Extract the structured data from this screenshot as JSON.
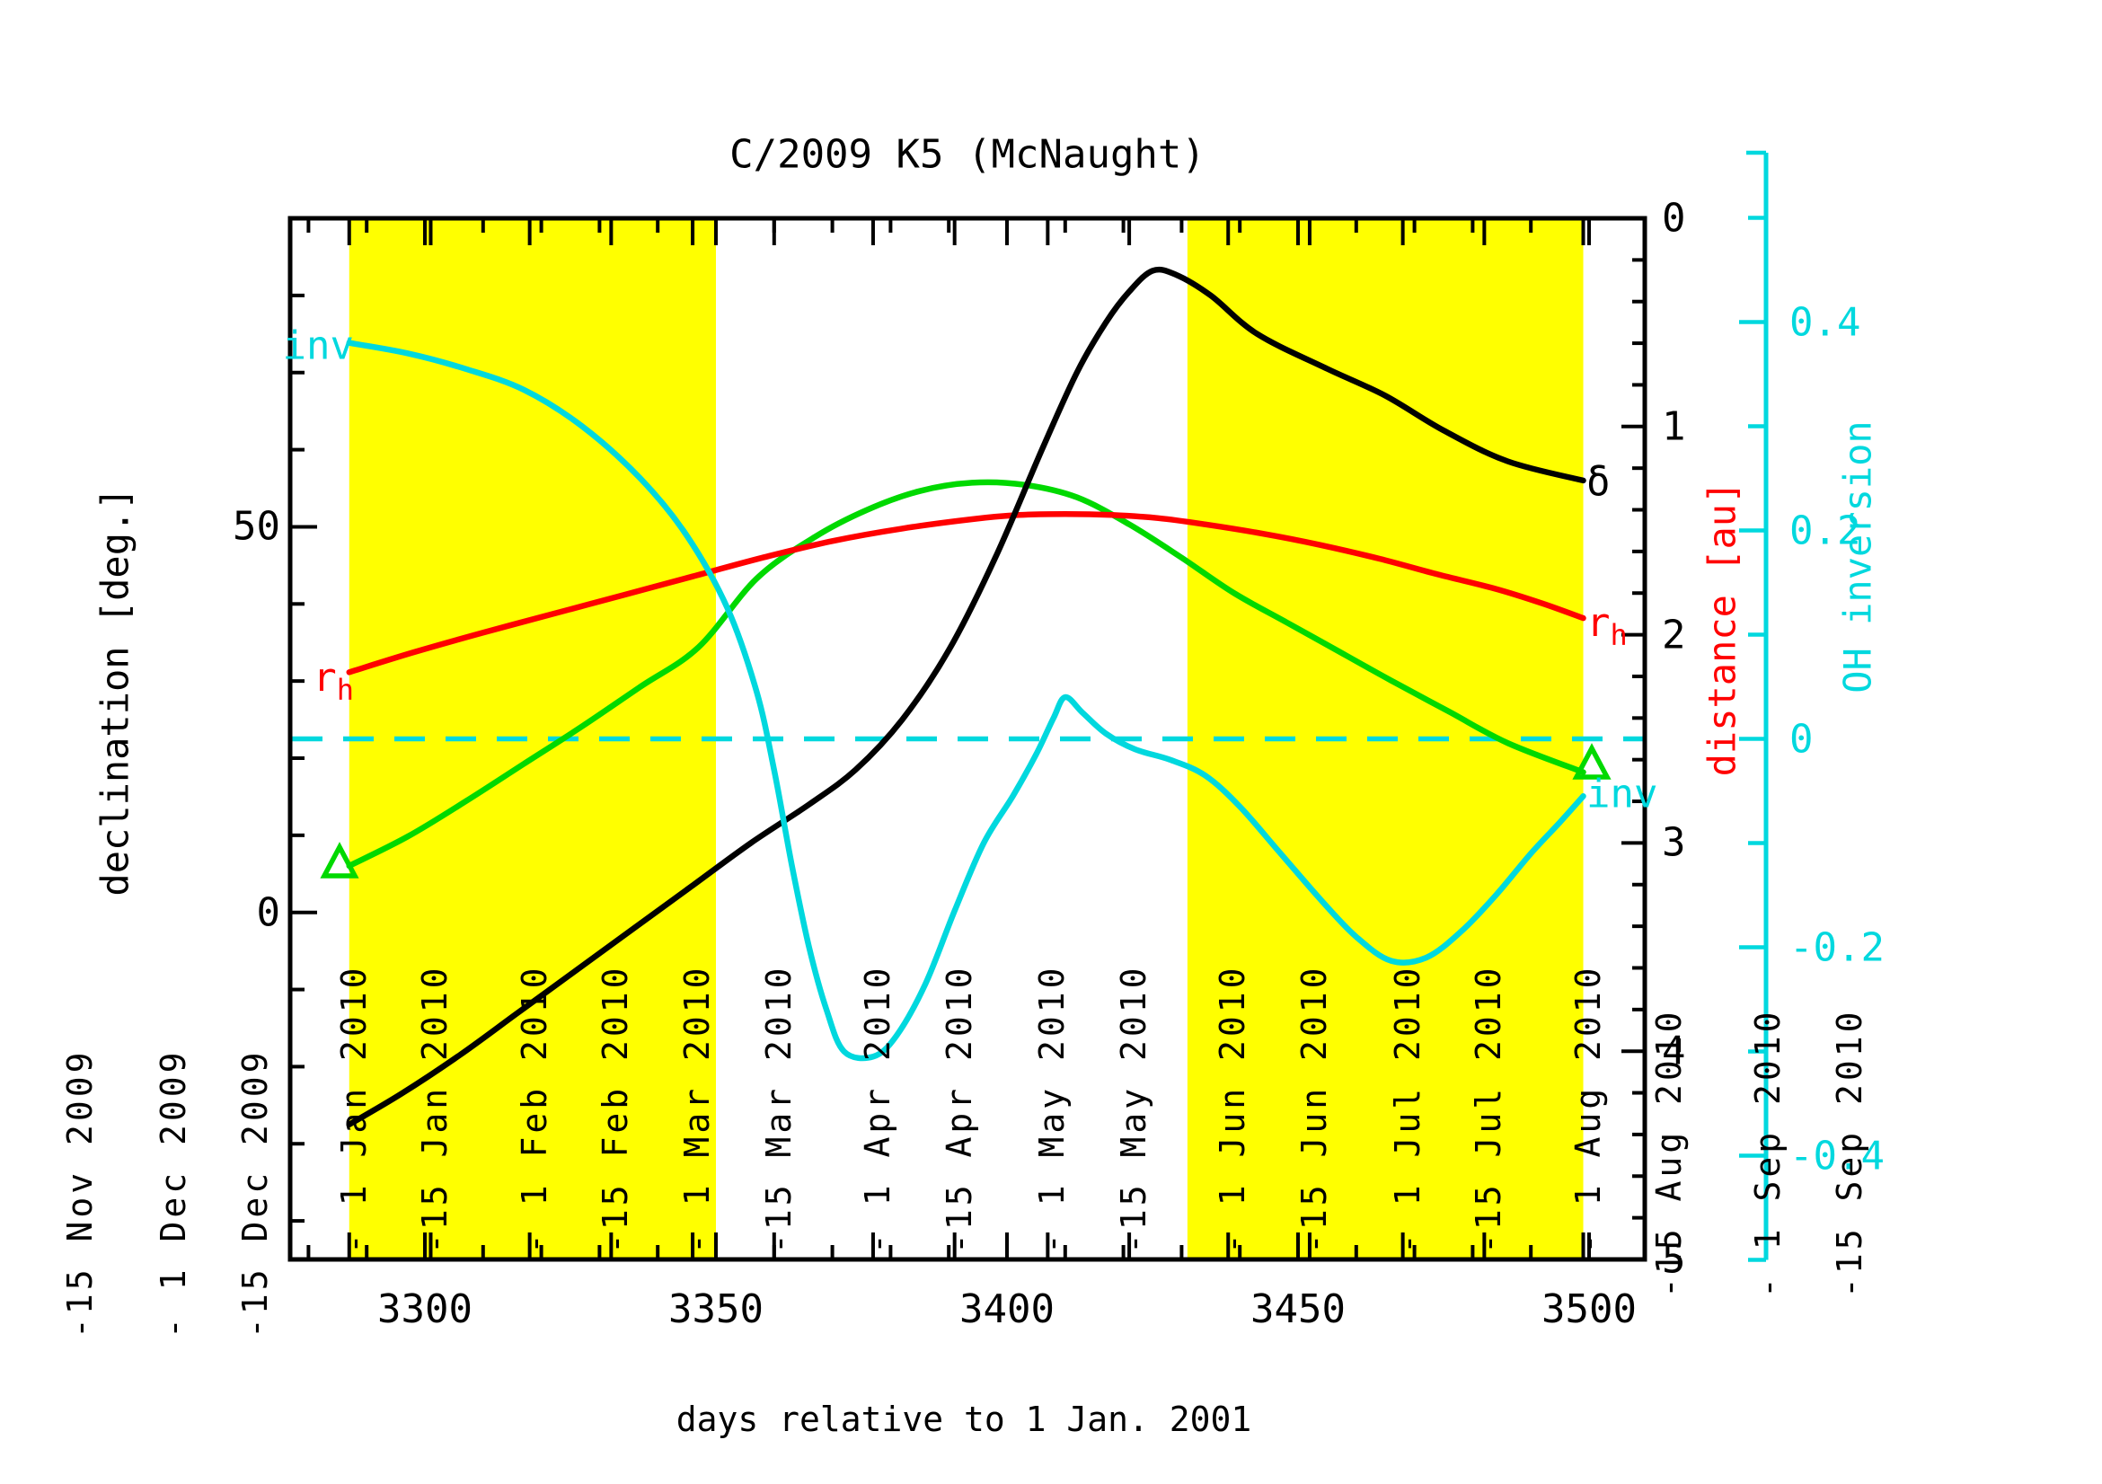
{
  "title": "C/2009 K5 (McNaught)",
  "colors": {
    "background": "#ffffff",
    "frame": "#000000",
    "shading": "#ffff00",
    "declination_curve": "#000000",
    "distance_curve": "#ff0000",
    "geocentric_curve": "#00d900",
    "inversion_curve": "#00d8de"
  },
  "axes": {
    "x": {
      "label": "days relative to 1 Jan. 2001",
      "tick_labels": [
        "3300",
        "3350",
        "3400",
        "3450",
        "3500"
      ],
      "tick_values": [
        3300,
        3350,
        3400,
        3450,
        3500
      ],
      "minor_step": 10,
      "range": [
        3277,
        3509.5
      ]
    },
    "declination": {
      "label": "declination [deg.]",
      "tick_labels": [
        "0",
        "50"
      ],
      "tick_values": [
        0,
        50
      ],
      "minor_step": 10,
      "range": [
        -45,
        90
      ]
    },
    "distance": {
      "label": "distance [au]",
      "tick_labels": [
        "0",
        "1",
        "2",
        "3",
        "4",
        "5"
      ],
      "tick_values": [
        0,
        1,
        2,
        3,
        4,
        5
      ],
      "minor_step": 0.2,
      "range": [
        0,
        5
      ]
    },
    "inversion": {
      "label": "OH inversion",
      "tick_labels": [
        "0.4",
        "0.2",
        "0",
        "-0.2",
        "-0.4"
      ],
      "tick_values": [
        0.4,
        0.2,
        0,
        -0.2,
        -0.4
      ],
      "minor_step": 0.1,
      "range": [
        -0.5,
        0.5
      ],
      "zero_line": "dashed"
    }
  },
  "date_ticks": {
    "outside_left": [
      {
        "day": 3240,
        "label": "-15 Nov 2009"
      },
      {
        "day": 3256,
        "label": "- 1 Dec 2009"
      },
      {
        "day": 3270,
        "label": "-15 Dec 2009"
      }
    ],
    "inside": [
      {
        "day": 3287,
        "label": "- 1 Jan 2010"
      },
      {
        "day": 3301,
        "label": "-15 Jan 2010"
      },
      {
        "day": 3318,
        "label": "- 1 Feb 2010"
      },
      {
        "day": 3332,
        "label": "-15 Feb 2010"
      },
      {
        "day": 3346,
        "label": "- 1 Mar 2010"
      },
      {
        "day": 3360,
        "label": "-15 Mar 2010"
      },
      {
        "day": 3377,
        "label": "- 1 Apr 2010"
      },
      {
        "day": 3391,
        "label": "-15 Apr 2010"
      },
      {
        "day": 3407,
        "label": "- 1 May 2010"
      },
      {
        "day": 3421,
        "label": "-15 May 2010"
      },
      {
        "day": 3438,
        "label": "- 1 Jun 2010"
      },
      {
        "day": 3452,
        "label": "-15 Jun 2010"
      },
      {
        "day": 3468,
        "label": "- 1 Jul 2010"
      },
      {
        "day": 3482,
        "label": "-15 Jul 2010"
      },
      {
        "day": 3499,
        "label": "- 1 Aug 2010"
      }
    ],
    "outside_right": [
      {
        "day": 3513,
        "label": "-15 Aug 2010"
      },
      {
        "day": 3530,
        "label": "- 1 Sep 2010"
      },
      {
        "day": 3544,
        "label": "-15 Sep 2010"
      }
    ]
  },
  "shaded_windows": [
    {
      "start_day": 3287,
      "end_day": 3350
    },
    {
      "start_day": 3431,
      "end_day": 3499
    }
  ],
  "curve_labels": {
    "inv_left": "inv",
    "inv_right": "inv",
    "r_main": "r",
    "r_sub": "h",
    "declination_symbol": "δ",
    "geocentric_symbol": "Δ"
  },
  "chart_data": {
    "type": "line",
    "title": "C/2009 K5 (McNaught)",
    "xlabel": "days relative to 1 Jan. 2001",
    "x_range": [
      3287,
      3499
    ],
    "series": [
      {
        "name": "declination",
        "label": "δ",
        "axis": "declination",
        "unit": "deg",
        "color_key": "declination_curve",
        "points": [
          [
            3287,
            -27.5
          ],
          [
            3296,
            -23.5
          ],
          [
            3306,
            -18.5
          ],
          [
            3316,
            -13
          ],
          [
            3326,
            -7.5
          ],
          [
            3336,
            -2
          ],
          [
            3346,
            3.5
          ],
          [
            3356,
            9
          ],
          [
            3366,
            14
          ],
          [
            3374,
            18.5
          ],
          [
            3382,
            25
          ],
          [
            3390,
            34
          ],
          [
            3398,
            46
          ],
          [
            3406,
            60
          ],
          [
            3412,
            70
          ],
          [
            3417,
            76.5
          ],
          [
            3421,
            80.5
          ],
          [
            3425,
            83.2
          ],
          [
            3429,
            82.7
          ],
          [
            3435,
            80
          ],
          [
            3443,
            75
          ],
          [
            3455,
            70.5
          ],
          [
            3465,
            67
          ],
          [
            3475,
            62.5
          ],
          [
            3486,
            58.5
          ],
          [
            3499,
            56
          ]
        ]
      },
      {
        "name": "heliocentric_distance",
        "label": "r_h",
        "axis": "distance",
        "unit": "au",
        "color_key": "distance_curve",
        "points": [
          [
            3287,
            2.18
          ],
          [
            3298,
            2.085
          ],
          [
            3310,
            1.99
          ],
          [
            3322,
            1.9
          ],
          [
            3334,
            1.81
          ],
          [
            3346,
            1.72
          ],
          [
            3358,
            1.63
          ],
          [
            3370,
            1.55
          ],
          [
            3382,
            1.49
          ],
          [
            3394,
            1.445
          ],
          [
            3402,
            1.425
          ],
          [
            3410,
            1.42
          ],
          [
            3418,
            1.425
          ],
          [
            3426,
            1.44
          ],
          [
            3434,
            1.47
          ],
          [
            3444,
            1.515
          ],
          [
            3454,
            1.57
          ],
          [
            3464,
            1.635
          ],
          [
            3474,
            1.71
          ],
          [
            3484,
            1.78
          ],
          [
            3492,
            1.85
          ],
          [
            3499,
            1.92
          ]
        ]
      },
      {
        "name": "geocentric_distance",
        "label": "Δ",
        "axis": "distance",
        "unit": "au",
        "color_key": "geocentric_curve",
        "end_markers": "open-triangle",
        "points": [
          [
            3287,
            3.11
          ],
          [
            3297,
            2.97
          ],
          [
            3307,
            2.8
          ],
          [
            3317,
            2.62
          ],
          [
            3327,
            2.44
          ],
          [
            3337,
            2.25
          ],
          [
            3347,
            2.06
          ],
          [
            3357,
            1.73
          ],
          [
            3367,
            1.53
          ],
          [
            3376,
            1.4
          ],
          [
            3385,
            1.31
          ],
          [
            3394,
            1.27
          ],
          [
            3403,
            1.28
          ],
          [
            3412,
            1.34
          ],
          [
            3421,
            1.47
          ],
          [
            3430,
            1.63
          ],
          [
            3439,
            1.8
          ],
          [
            3448,
            1.94
          ],
          [
            3457,
            2.08
          ],
          [
            3466,
            2.22
          ],
          [
            3476,
            2.37
          ],
          [
            3486,
            2.52
          ],
          [
            3499,
            2.66
          ]
        ]
      },
      {
        "name": "OH_inversion",
        "label": "inv",
        "axis": "inversion",
        "unit": "",
        "color_key": "inversion_curve",
        "points": [
          [
            3287,
            0.38
          ],
          [
            3297,
            0.37
          ],
          [
            3307,
            0.355
          ],
          [
            3317,
            0.335
          ],
          [
            3327,
            0.3
          ],
          [
            3337,
            0.25
          ],
          [
            3345,
            0.195
          ],
          [
            3352,
            0.125
          ],
          [
            3357,
            0.045
          ],
          [
            3360,
            -0.03
          ],
          [
            3363,
            -0.12
          ],
          [
            3366,
            -0.2
          ],
          [
            3369,
            -0.26
          ],
          [
            3372,
            -0.3
          ],
          [
            3377,
            -0.305
          ],
          [
            3381,
            -0.285
          ],
          [
            3386,
            -0.235
          ],
          [
            3391,
            -0.165
          ],
          [
            3396,
            -0.1
          ],
          [
            3401,
            -0.055
          ],
          [
            3405,
            -0.015
          ],
          [
            3408,
            0.02
          ],
          [
            3410,
            0.04
          ],
          [
            3413,
            0.025
          ],
          [
            3417,
            0.005
          ],
          [
            3422,
            -0.01
          ],
          [
            3428,
            -0.02
          ],
          [
            3434,
            -0.035
          ],
          [
            3440,
            -0.065
          ],
          [
            3447,
            -0.11
          ],
          [
            3454,
            -0.155
          ],
          [
            3460,
            -0.19
          ],
          [
            3466,
            -0.213
          ],
          [
            3472,
            -0.21
          ],
          [
            3478,
            -0.185
          ],
          [
            3484,
            -0.15
          ],
          [
            3490,
            -0.11
          ],
          [
            3495,
            -0.08
          ],
          [
            3499,
            -0.055
          ]
        ]
      }
    ]
  }
}
